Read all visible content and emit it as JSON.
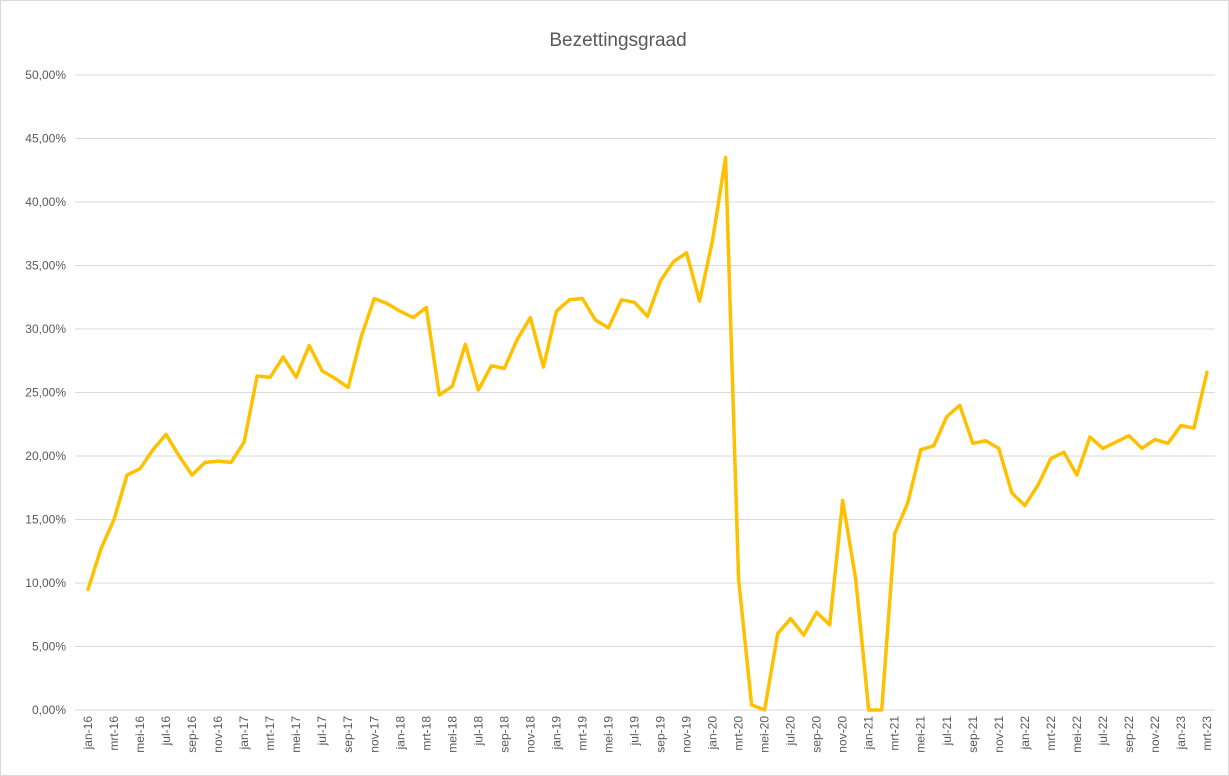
{
  "chart_data": {
    "type": "line",
    "title": "Bezettingsgraad",
    "categories": [
      "jan-16",
      null,
      "mrt-16",
      null,
      "mei-16",
      null,
      "jul-16",
      null,
      "sep-16",
      null,
      "nov-16",
      null,
      "jan-17",
      null,
      "mrt-17",
      null,
      "mei-17",
      null,
      "jul-17",
      null,
      "sep-17",
      null,
      "nov-17",
      null,
      "jan-18",
      null,
      "mrt-18",
      null,
      "mei-18",
      null,
      "jul-18",
      null,
      "sep-18",
      null,
      "nov-18",
      null,
      "jan-19",
      null,
      "mrt-19",
      null,
      "mei-19",
      null,
      "jul-19",
      null,
      "sep-19",
      null,
      "nov-19",
      null,
      "jan-20",
      null,
      "mrt-20",
      null,
      "mei-20",
      null,
      "jul-20",
      null,
      "sep-20",
      null,
      "nov-20",
      null,
      "jan-21",
      null,
      "mrt-21",
      null,
      "mei-21",
      null,
      "jul-21",
      null,
      "sep-21",
      null,
      "nov-21",
      null,
      "jan-22",
      null,
      "mrt-22",
      null,
      "mei-22",
      null,
      "jul-22",
      null,
      "sep-22",
      null,
      "nov-22",
      null,
      "jan-23",
      null,
      "mrt-23"
    ],
    "series": [
      {
        "color": "#FFC000",
        "values": [
          9.5,
          12.7,
          15.0,
          18.5,
          19.0,
          20.5,
          21.7,
          20.0,
          18.5,
          19.5,
          19.6,
          19.5,
          21.1,
          26.3,
          26.2,
          27.8,
          26.2,
          28.7,
          26.7,
          26.1,
          25.4,
          29.4,
          32.4,
          32.0,
          31.4,
          30.9,
          31.7,
          24.8,
          25.5,
          28.8,
          25.2,
          27.1,
          26.9,
          29.2,
          30.9,
          27.0,
          31.4,
          32.3,
          32.4,
          30.7,
          30.1,
          32.3,
          32.1,
          31.0,
          33.8,
          35.3,
          36.0,
          32.2,
          37.0,
          43.5,
          10.3,
          0.4,
          0.0,
          6.0,
          7.2,
          5.9,
          7.7,
          6.7,
          16.5,
          10.3,
          0.0,
          0.0,
          13.9,
          16.3,
          20.5,
          20.8,
          23.1,
          24.0,
          21.0,
          21.2,
          20.6,
          17.1,
          16.1,
          17.7,
          19.8,
          20.3,
          18.5,
          21.5,
          20.6,
          21.1,
          21.6,
          20.6,
          21.3,
          21.0,
          22.4,
          22.2,
          26.6
        ]
      }
    ],
    "ylim": [
      0,
      50
    ],
    "yticks": [
      {
        "value": 0,
        "label": "0,00%"
      },
      {
        "value": 5,
        "label": "5,00%"
      },
      {
        "value": 10,
        "label": "10,00%"
      },
      {
        "value": 15,
        "label": "15,00%"
      },
      {
        "value": 20,
        "label": "20,00%"
      },
      {
        "value": 25,
        "label": "25,00%"
      },
      {
        "value": 30,
        "label": "30,00%"
      },
      {
        "value": 35,
        "label": "35,00%"
      },
      {
        "value": 40,
        "label": "40,00%"
      },
      {
        "value": 45,
        "label": "45,00%"
      },
      {
        "value": 50,
        "label": "50,00%"
      }
    ],
    "grid": true
  }
}
